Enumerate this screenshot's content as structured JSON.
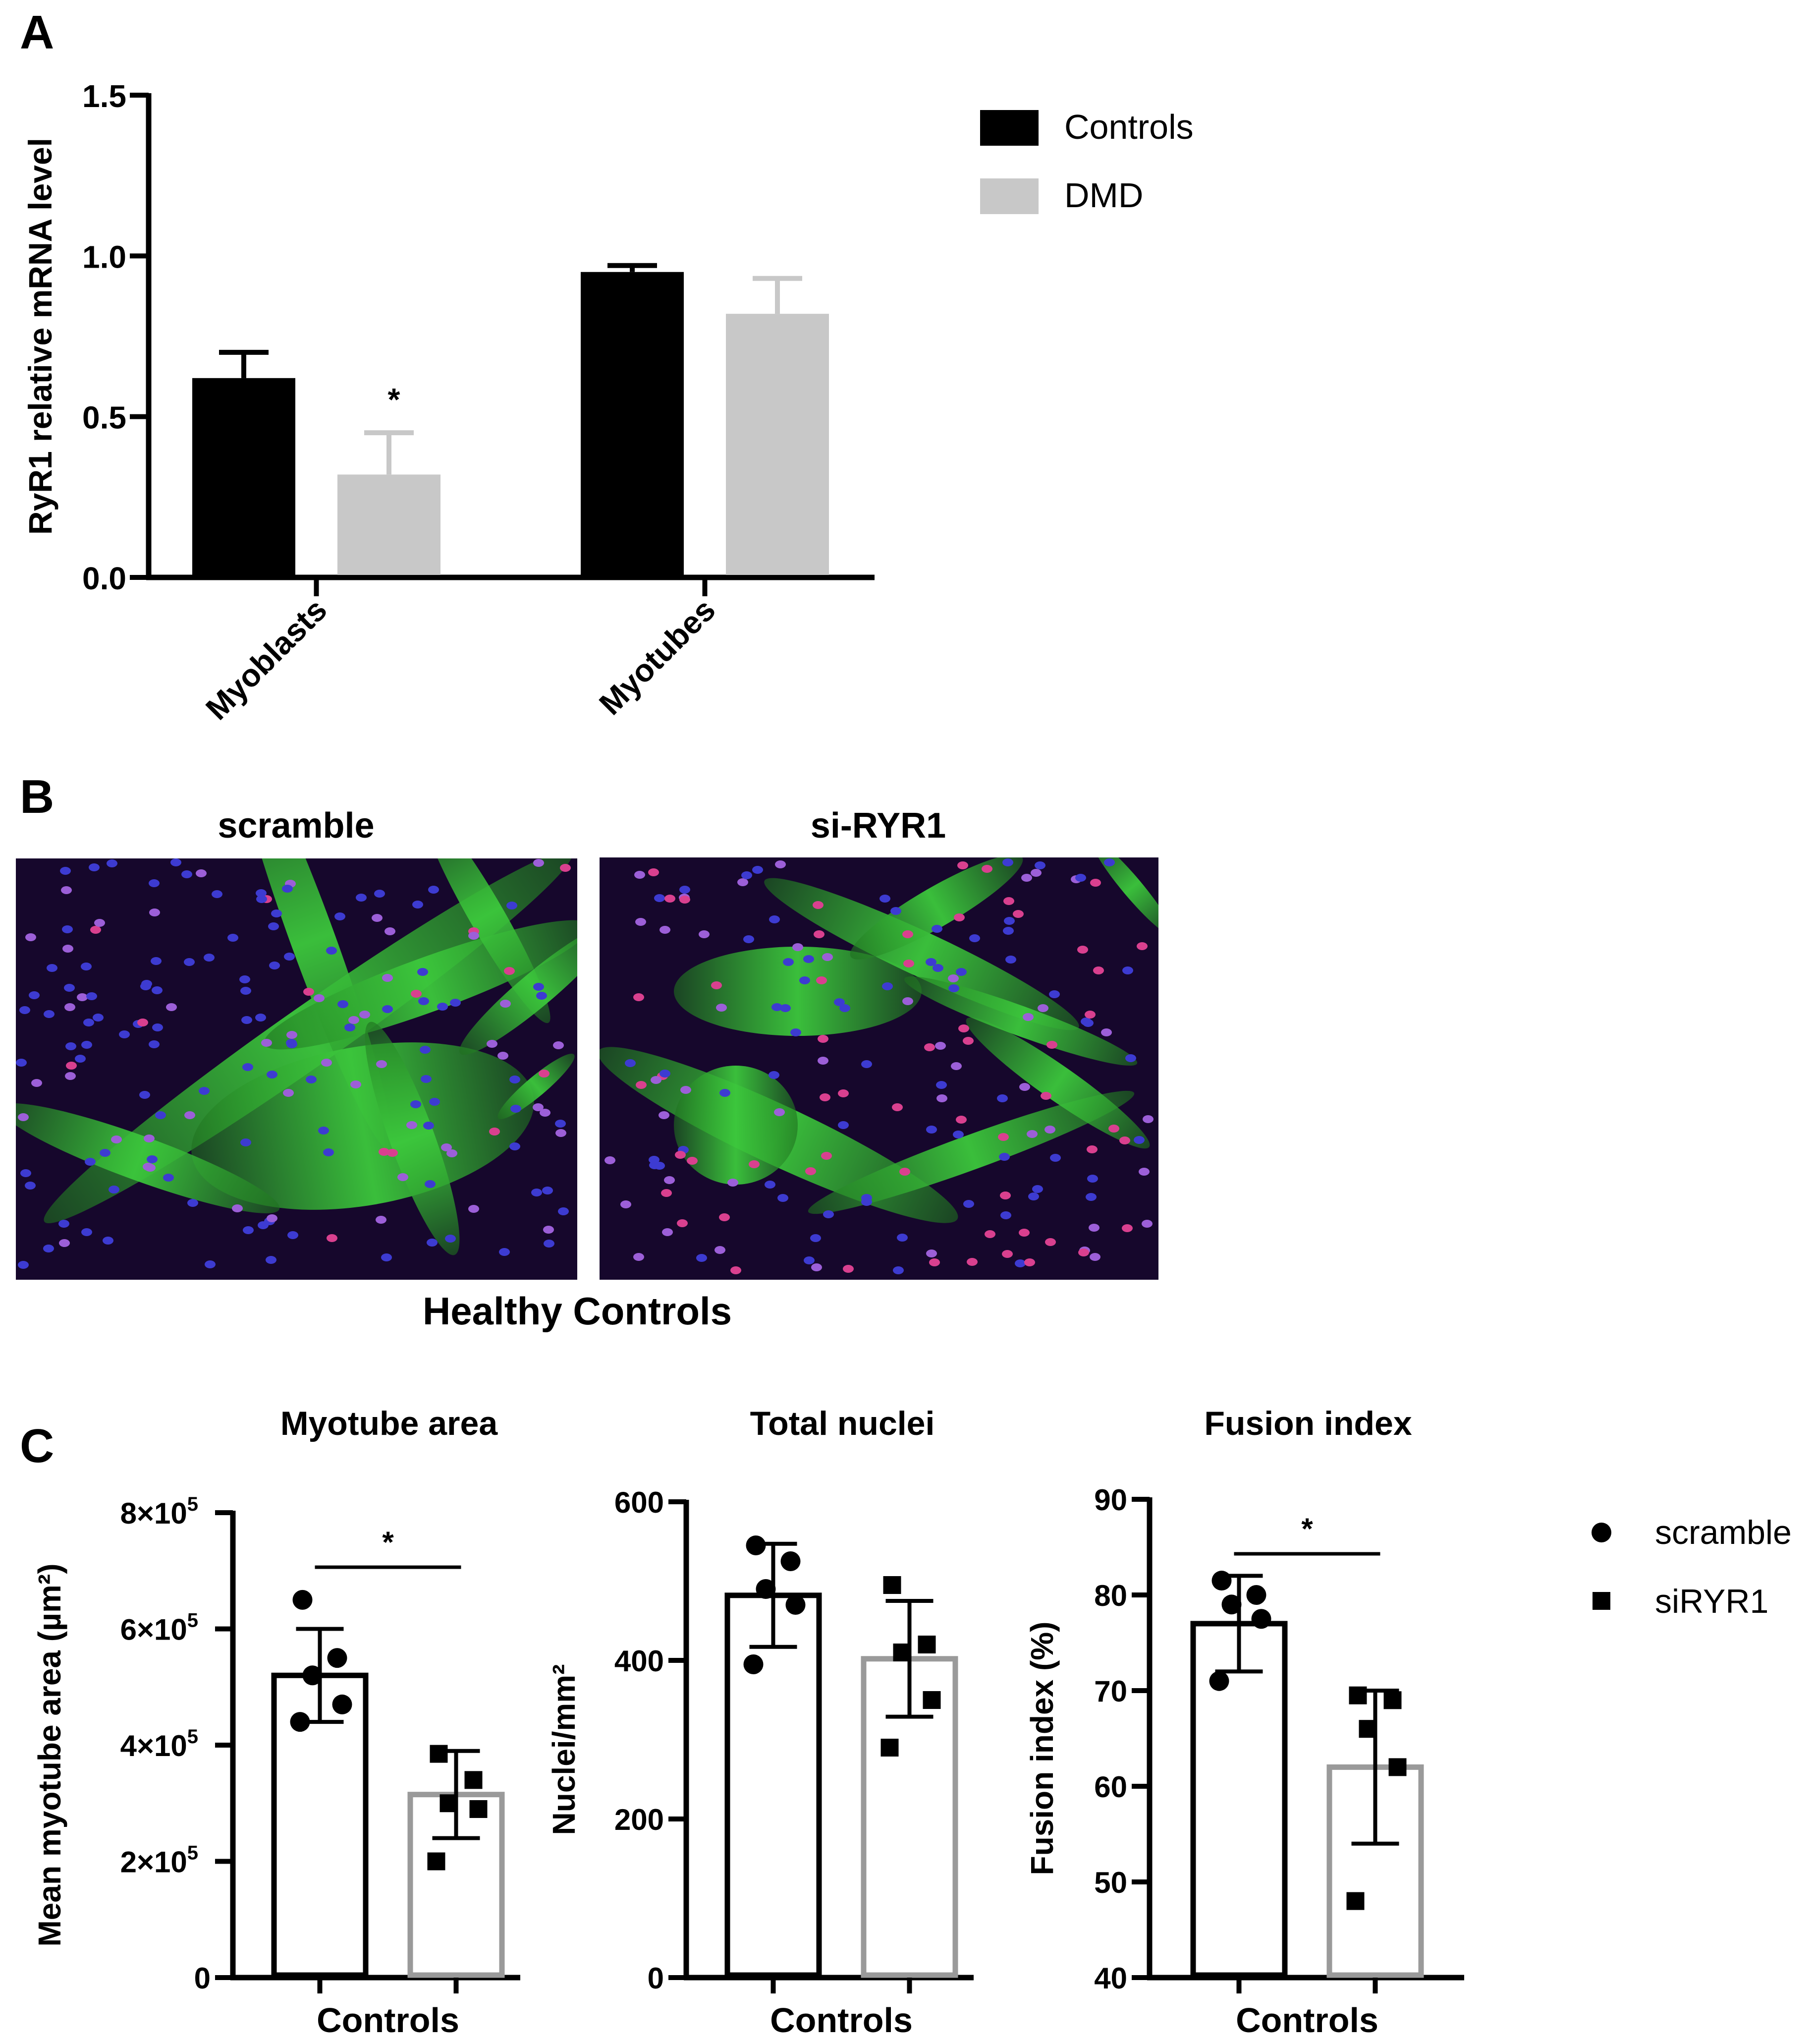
{
  "panels": {
    "a": "A",
    "b": "B",
    "c": "C"
  },
  "colors": {
    "controls": "#000000",
    "dmd": "#c8c8c8",
    "scramble": "#000000",
    "sirYR1": "#9a9a9a"
  },
  "panel_b": {
    "left_title": "scramble",
    "right_title": "si-RYR1",
    "caption": "Healthy Controls",
    "left_image": "myotube-fluorescence-scramble",
    "right_image": "myotube-fluorescence-si-ryr1"
  },
  "chart_data": [
    {
      "id": "A",
      "type": "bar",
      "title": "",
      "ylabel": "RyR1 relative mRNA level",
      "xlabel": "",
      "categories": [
        "Myoblasts",
        "Myotubes"
      ],
      "ylim": [
        0,
        1.5
      ],
      "yticks": [
        "0.0",
        "0.5",
        "1.0",
        "1.5"
      ],
      "series": [
        {
          "name": "Controls",
          "values": [
            0.62,
            0.95
          ],
          "errors": [
            0.08,
            0.02
          ]
        },
        {
          "name": "DMD",
          "values": [
            0.32,
            0.82
          ],
          "errors": [
            0.13,
            0.11
          ]
        }
      ],
      "annotations": [
        {
          "category": "Myoblasts",
          "series": "DMD",
          "text": "*"
        }
      ],
      "legend": "top-right"
    },
    {
      "id": "C1",
      "type": "bar",
      "title": "Myotube area",
      "ylabel": "Mean myotube area (µm²)",
      "xlabel": "Controls",
      "ylim": [
        0,
        800000
      ],
      "yticks": [
        {
          "v": 0,
          "m": "0",
          "e": ""
        },
        {
          "v": 200000,
          "m": "2×10",
          "e": "5"
        },
        {
          "v": 400000,
          "m": "4×10",
          "e": "5"
        },
        {
          "v": 600000,
          "m": "6×10",
          "e": "5"
        },
        {
          "v": 800000,
          "m": "8×10",
          "e": "5"
        }
      ],
      "series": [
        {
          "name": "scramble",
          "mean": 520000,
          "sd": 80000,
          "points": [
            650000,
            550000,
            520000,
            470000,
            440000
          ]
        },
        {
          "name": "siRYR1",
          "mean": 315000,
          "sd": 75000,
          "points": [
            385000,
            340000,
            300000,
            290000,
            200000
          ]
        }
      ],
      "significance": "*"
    },
    {
      "id": "C2",
      "type": "bar",
      "title": "Total nuclei",
      "ylabel": "Nuclei/mm²",
      "xlabel": "Controls",
      "ylim": [
        0,
        600
      ],
      "yticks": [
        {
          "v": 0,
          "m": "0",
          "e": ""
        },
        {
          "v": 200,
          "m": "200",
          "e": ""
        },
        {
          "v": 400,
          "m": "400",
          "e": ""
        },
        {
          "v": 600,
          "m": "600",
          "e": ""
        }
      ],
      "series": [
        {
          "name": "scramble",
          "mean": 482,
          "sd": 65,
          "points": [
            545,
            525,
            490,
            470,
            395
          ]
        },
        {
          "name": "siRYR1",
          "mean": 402,
          "sd": 73,
          "points": [
            495,
            420,
            410,
            350,
            290
          ]
        }
      ],
      "significance": ""
    },
    {
      "id": "C3",
      "type": "bar",
      "title": "Fusion index",
      "ylabel": "Fusion index (%)",
      "xlabel": "Controls",
      "ylim": [
        40,
        90
      ],
      "yticks": [
        {
          "v": 40,
          "m": "40",
          "e": ""
        },
        {
          "v": 50,
          "m": "50",
          "e": ""
        },
        {
          "v": 60,
          "m": "60",
          "e": ""
        },
        {
          "v": 70,
          "m": "70",
          "e": ""
        },
        {
          "v": 80,
          "m": "80",
          "e": ""
        },
        {
          "v": 90,
          "m": "90",
          "e": ""
        }
      ],
      "series": [
        {
          "name": "scramble",
          "mean": 77,
          "sd": 5,
          "points": [
            81.5,
            80,
            79,
            77.5,
            71
          ]
        },
        {
          "name": "siRYR1",
          "mean": 62,
          "sd": 8,
          "points": [
            69.5,
            69,
            66,
            62,
            48
          ]
        }
      ],
      "significance": "*"
    }
  ],
  "legend_c": [
    {
      "name": "scramble",
      "marker": "circle"
    },
    {
      "name": "siRYR1",
      "marker": "square"
    }
  ]
}
